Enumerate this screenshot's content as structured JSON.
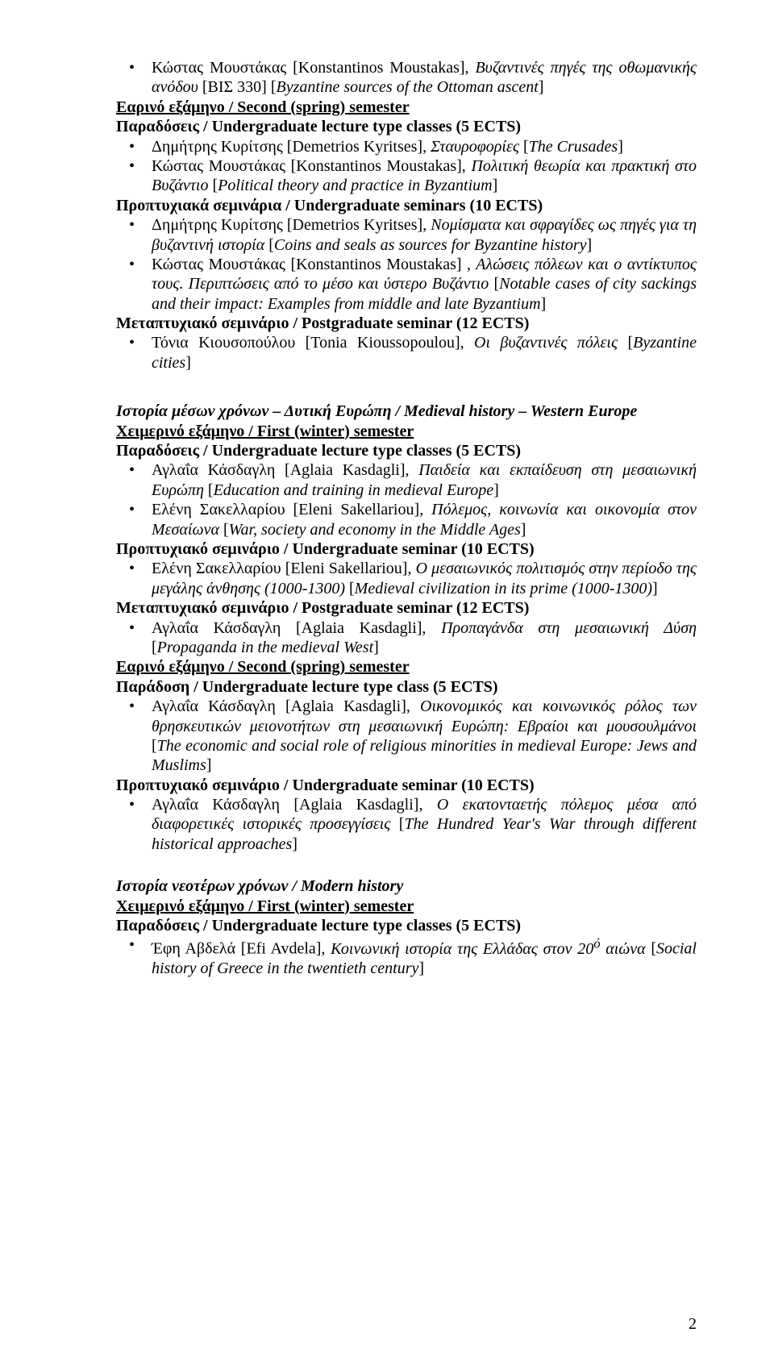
{
  "top": {
    "li1": "Κώστας Μουστάκας [Konstantinos Moustakas], <i>Βυζαντινές πηγές της οθωμανικής ανόδου</i> [ΒΙΣ 330] [<i>Byzantine sources of the Ottoman ascent</i>]"
  },
  "spring1": {
    "heading": "Εαρινό εξάμηνο / Second (spring) semester",
    "lectures_h": "Παραδόσεις / Undergraduate lecture type classes (5 ECTS)",
    "lec1": "Δημήτρης Κυρίτσης [Demetrios Kyritses], <i>Σταυροφορίες</i> [<i>The Crusades</i>]",
    "lec2": "Κώστας Μουστάκας [Konstantinos Moustakas], <i>Πολιτική θεωρία και πρακτική στο Βυζάντιο</i> [<i>Political theory and practice in Byzantium</i>]",
    "usem_h": "Προπτυχιακά σεμινάρια / Undergraduate seminars (10 ECTS)",
    "usem1": "Δημήτρης Κυρίτσης [Demetrios Kyritses], <i>Νομίσματα και σφραγίδες ως πηγές για τη βυζαντινή ιστορία</i> [<i>Coins and seals as sources for Byzantine history</i>]",
    "usem2": "Κώστας Μουστάκας [Konstantinos Moustakas]<i> , Αλώσεις πόλεων και ο αντίκτυπος τους. Περιπτώσεις από το μέσο και ύστερο Βυζάντιο</i> [<i>Notable cases of city sackings and their impact: Examples from middle and late Byzantium</i>]",
    "psem_h": "Μεταπτυχιακό σεμινάριο / Postgraduate seminar (12 ECTS)",
    "psem1": "Τόνια Κιουσοπούλου [Tonia Kioussopoulou], <i>Οι βυζαντινές πόλεις</i> [<i>Byzantine cities</i>]"
  },
  "medieval": {
    "title": "Ιστορία μέσων χρόνων – Δυτική Ευρώπη / Medieval history – Western Europe",
    "winter_h": "Χειμερινό εξάμηνο / First (winter) semester",
    "lectures_h": "Παραδόσεις / Undergraduate lecture type classes (5 ECTS)",
    "lec1": "Αγλαΐα Κάσδαγλη [Aglaia Kasdagli], <i>Παιδεία και εκπαίδευση στη μεσαιωνική Ευρώπη</i> [<i>Education and training in medieval Europe</i>]",
    "lec2": "Ελένη Σακελλαρίου [Eleni Sakellariou], <i>Πόλεμος, κοινωνία και οικονομία στον Μεσαίωνα</i> [<i>War, society and economy in the Middle Ages</i>]",
    "usem_h": "Προπτυχιακό σεμινάριο / Undergraduate seminar (10 ECTS)",
    "usem1": "Ελένη Σακελλαρίου [Eleni Sakellariou], <i>Ο μεσαιωνικός πολιτισμός στην περίοδο της μεγάλης άνθησης (1000-1300)</i> [<i>Medieval civilization in its prime (1000-1300)</i>]",
    "psem_h": "Μεταπτυχιακό σεμινάριο / Postgraduate seminar (12 ECTS)",
    "psem1": "Αγλαΐα Κάσδαγλη [Aglaia Kasdagli], <i>Προπαγάνδα στη μεσαιωνική Δύση</i> [<i>Propaganda in the medieval West</i>]",
    "spring_h": "Εαρινό εξάμηνο / Second (spring) semester",
    "lecture_h2": "Παράδοση / Undergraduate lecture type class (5 ECTS)",
    "lec3": "Αγλαΐα Κάσδαγλη [Aglaia Kasdagli], <i>Οικονομικός και κοινωνικός ρόλος των θρησκευτικών μειονοτήτων στη μεσαιωνική Ευρώπη: Εβραίοι και μουσουλμάνοι</i> [<i>The economic and social role of religious minorities in medieval Europe: Jews and Muslims</i>]",
    "usem_h2": "Προπτυχιακό σεμινάριο / Undergraduate seminar (10 ECTS)",
    "usem2": "Αγλαΐα Κάσδαγλη [Aglaia Kasdagli], <i>Ο εκατονταετής πόλεμος μέσα από διαφορετικές ιστορικές προσεγγίσεις</i> [<i>The Hundred Year's War through different historical approaches</i>]"
  },
  "modern": {
    "title": "Ιστορία νεοτέρων χρόνων / Modern history",
    "winter_h": "Χειμερινό εξάμηνο / First (winter) semester",
    "lectures_h": "Παραδόσεις / Undergraduate lecture type classes (5 ECTS)",
    "lec1": "Έφη Αβδελά [Efi Avdela], <i>Κοινωνική ιστορία της Ελλάδας στον 20<sup>ό</sup> αιώνα</i> [<i>Social history of Greece in the twentieth century</i>]"
  },
  "pagenum": "2"
}
